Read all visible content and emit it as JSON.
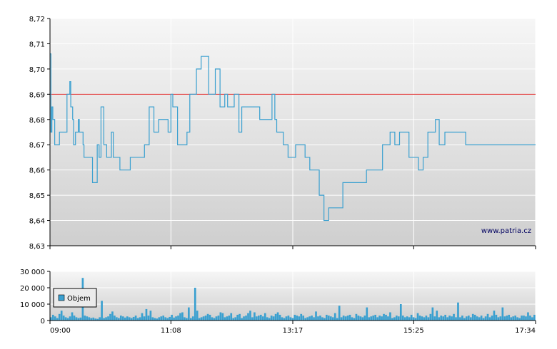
{
  "chart_data": [
    {
      "type": "line",
      "ylim": [
        8.63,
        8.72
      ],
      "y_ticks": [
        "8,63",
        "8,64",
        "8,65",
        "8,66",
        "8,67",
        "8,68",
        "8,69",
        "8,70",
        "8,71",
        "8,72"
      ],
      "x_ticks": [
        "09:00",
        "11:08",
        "13:17",
        "15:25",
        "17:34"
      ],
      "reference_line": 8.69,
      "reference_color": "#e03030",
      "line_color": "#3aa0d0",
      "grid": true,
      "watermark": "www.patria.cz",
      "x": [
        "09:00",
        "09:01",
        "09:02",
        "09:03",
        "09:05",
        "09:08",
        "09:10",
        "09:15",
        "09:18",
        "09:21",
        "09:22",
        "09:24",
        "09:25",
        "09:27",
        "09:29",
        "09:30",
        "09:31",
        "09:33",
        "09:35",
        "09:36",
        "09:38",
        "09:45",
        "09:50",
        "09:52",
        "09:54",
        "09:57",
        "10:00",
        "10:02",
        "10:05",
        "10:07",
        "10:12",
        "10:14",
        "10:16",
        "10:20",
        "10:25",
        "10:28",
        "10:35",
        "10:40",
        "10:45",
        "10:50",
        "10:55",
        "11:05",
        "11:08",
        "11:10",
        "11:12",
        "11:15",
        "11:25",
        "11:28",
        "11:35",
        "11:40",
        "11:48",
        "11:52",
        "11:55",
        "12:00",
        "12:05",
        "12:08",
        "12:10",
        "12:15",
        "12:20",
        "12:23",
        "12:26",
        "12:30",
        "12:40",
        "12:42",
        "12:48",
        "12:55",
        "12:58",
        "13:00",
        "13:03",
        "13:07",
        "13:10",
        "13:12",
        "13:15",
        "13:20",
        "13:28",
        "13:30",
        "13:35",
        "13:45",
        "13:50",
        "13:55",
        "14:10",
        "14:20",
        "14:35",
        "14:45",
        "14:52",
        "14:55",
        "15:00",
        "15:05",
        "15:10",
        "15:20",
        "15:30",
        "15:35",
        "15:40",
        "15:42",
        "15:46",
        "15:48",
        "15:52",
        "15:58",
        "16:05",
        "16:15",
        "16:20",
        "16:30",
        "16:38",
        "16:42",
        "16:45",
        "16:48",
        "16:50",
        "16:55",
        "17:00",
        "17:05",
        "17:10",
        "17:15",
        "17:20",
        "17:25",
        "17:30",
        "17:34"
      ],
      "values": [
        8.706,
        8.675,
        8.685,
        8.68,
        8.67,
        8.67,
        8.675,
        8.675,
        8.69,
        8.695,
        8.685,
        8.68,
        8.67,
        8.675,
        8.675,
        8.68,
        8.675,
        8.675,
        8.67,
        8.665,
        8.665,
        8.655,
        8.67,
        8.665,
        8.685,
        8.67,
        8.665,
        8.665,
        8.675,
        8.665,
        8.665,
        8.66,
        8.66,
        8.66,
        8.665,
        8.665,
        8.665,
        8.67,
        8.685,
        8.675,
        8.68,
        8.675,
        8.69,
        8.685,
        8.685,
        8.67,
        8.675,
        8.69,
        8.7,
        8.705,
        8.69,
        8.69,
        8.7,
        8.685,
        8.69,
        8.685,
        8.685,
        8.69,
        8.675,
        8.685,
        8.685,
        8.685,
        8.685,
        8.68,
        8.68,
        8.69,
        8.68,
        8.675,
        8.675,
        8.67,
        8.67,
        8.665,
        8.665,
        8.67,
        8.67,
        8.665,
        8.66,
        8.65,
        8.64,
        8.645,
        8.655,
        8.655,
        8.66,
        8.66,
        8.67,
        8.67,
        8.675,
        8.67,
        8.675,
        8.665,
        8.66,
        8.665,
        8.675,
        8.675,
        8.675,
        8.68,
        8.67,
        8.675,
        8.675,
        8.675,
        8.67,
        8.67,
        8.67,
        8.67,
        8.67,
        8.67,
        8.67,
        8.67,
        8.67,
        8.67,
        8.67,
        8.67,
        8.67,
        8.67,
        8.67,
        8.67
      ]
    },
    {
      "type": "bar",
      "ylim": [
        0,
        30000
      ],
      "y_ticks": [
        "0",
        "10 000",
        "20 000",
        "30 000"
      ],
      "x_ticks": [
        "09:00",
        "11:08",
        "13:17",
        "15:25",
        "17:34"
      ],
      "bar_color": "#3aa0d0",
      "legend": "Objem",
      "values": [
        2000,
        3500,
        2500,
        1500,
        4000,
        6000,
        3000,
        2000,
        1500,
        2500,
        5000,
        3000,
        2000,
        1500,
        1800,
        26000,
        3000,
        2500,
        2000,
        1500,
        1800,
        1200,
        1000,
        2000,
        12000,
        1500,
        2000,
        2500,
        4000,
        5500,
        3000,
        2000,
        1500,
        3000,
        2500,
        1800,
        2500,
        2000,
        1500,
        2200,
        3000,
        1500,
        2000,
        4500,
        2500,
        7000,
        3000,
        6000,
        2000,
        1500,
        1200,
        2000,
        2500,
        3000,
        2000,
        1500,
        2200,
        3500,
        1800,
        2500,
        3000,
        4500,
        5000,
        2000,
        1500,
        8000,
        1500,
        2500,
        20000,
        6000,
        1500,
        2000,
        2500,
        3000,
        4000,
        3500,
        2000,
        1500,
        2500,
        3000,
        5000,
        4500,
        2000,
        2500,
        3000,
        4500,
        1500,
        2000,
        3500,
        4000,
        1500,
        2500,
        3000,
        4500,
        6000,
        2000,
        5000,
        2500,
        3000,
        3500,
        2500,
        4500,
        2000,
        1500,
        3000,
        2500,
        4000,
        5000,
        3500,
        2000,
        1500,
        2500,
        3000,
        2000,
        1500,
        3500,
        3000,
        2500,
        4000,
        3000,
        1500,
        2000,
        2500,
        3000,
        2000,
        5500,
        2500,
        3000,
        2000,
        1500,
        3500,
        3000,
        2500,
        2000,
        4500,
        1500,
        9000,
        2000,
        3000,
        2500,
        3000,
        3500,
        2000,
        1500,
        4000,
        3000,
        2500,
        2000,
        3000,
        8000,
        2000,
        2500,
        3000,
        3500,
        2000,
        3000,
        2500,
        4000,
        3500,
        2500,
        5000,
        1500,
        2000,
        3000,
        2500,
        10000,
        3000,
        2000,
        2500,
        2000,
        3500,
        2000,
        1500,
        4500,
        3000,
        2500,
        2000,
        3000,
        2000,
        4000,
        8000,
        2500,
        6000,
        2000,
        3000,
        2500,
        3500,
        2000,
        3000,
        2500,
        4000,
        2000,
        11000,
        2000,
        3000,
        1500,
        2500,
        3000,
        2000,
        4000,
        3500,
        2500,
        2000,
        3000,
        1500,
        2500,
        4000,
        2000,
        3000,
        6000,
        3500,
        2000,
        2500,
        8000,
        2500,
        3000,
        3500,
        2000,
        2500,
        3000,
        2000,
        1500,
        3000,
        3000,
        2500,
        5000,
        3000,
        2000,
        3500
      ]
    }
  ]
}
